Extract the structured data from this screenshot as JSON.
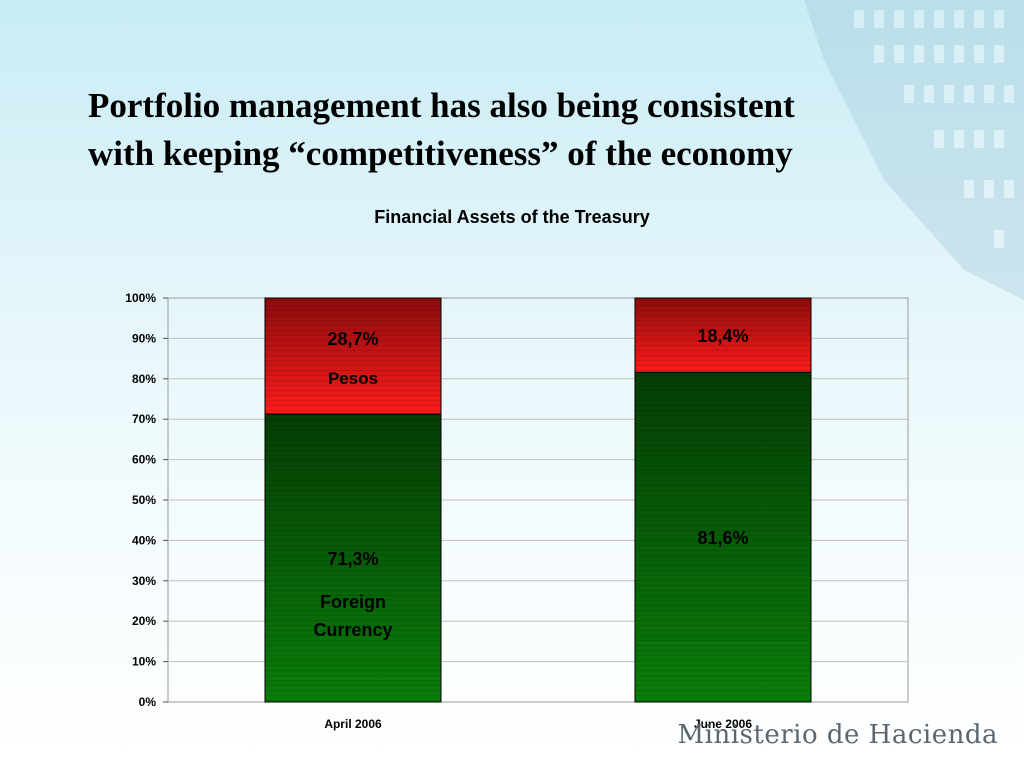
{
  "slide": {
    "title_line1": "Portfolio management has also being consistent",
    "title_line2": "with keeping “competitiveness” of the economy",
    "brand": "Ministerio de Hacienda"
  },
  "colors": {
    "foreign_top": "#053d05",
    "foreign_bottom": "#0a7d0a",
    "pesos_top": "#8b0d0d",
    "pesos_bottom": "#ff1a1a",
    "grid": "#c0c0c0",
    "text": "#000000"
  },
  "chart_data": {
    "type": "bar",
    "stacked": true,
    "title": "Financial Assets of the Treasury",
    "categories": [
      "April 2006",
      "June 2006"
    ],
    "series": [
      {
        "name": "Foreign Currency",
        "values": [
          71.3,
          81.6
        ],
        "data_labels": [
          "71,3%",
          "81,6%"
        ],
        "series_labels": [
          "Foreign Currency",
          ""
        ]
      },
      {
        "name": "Pesos",
        "values": [
          28.7,
          18.4
        ],
        "data_labels": [
          "28,7%",
          "18,4%"
        ],
        "series_labels": [
          "Pesos",
          ""
        ]
      }
    ],
    "ylim": [
      0,
      100
    ],
    "yticks": [
      0,
      10,
      20,
      30,
      40,
      50,
      60,
      70,
      80,
      90,
      100
    ],
    "ytick_labels": [
      "0%",
      "10%",
      "20%",
      "30%",
      "40%",
      "50%",
      "60%",
      "70%",
      "80%",
      "90%",
      "100%"
    ],
    "grid": true,
    "xlabel": "",
    "ylabel": ""
  }
}
